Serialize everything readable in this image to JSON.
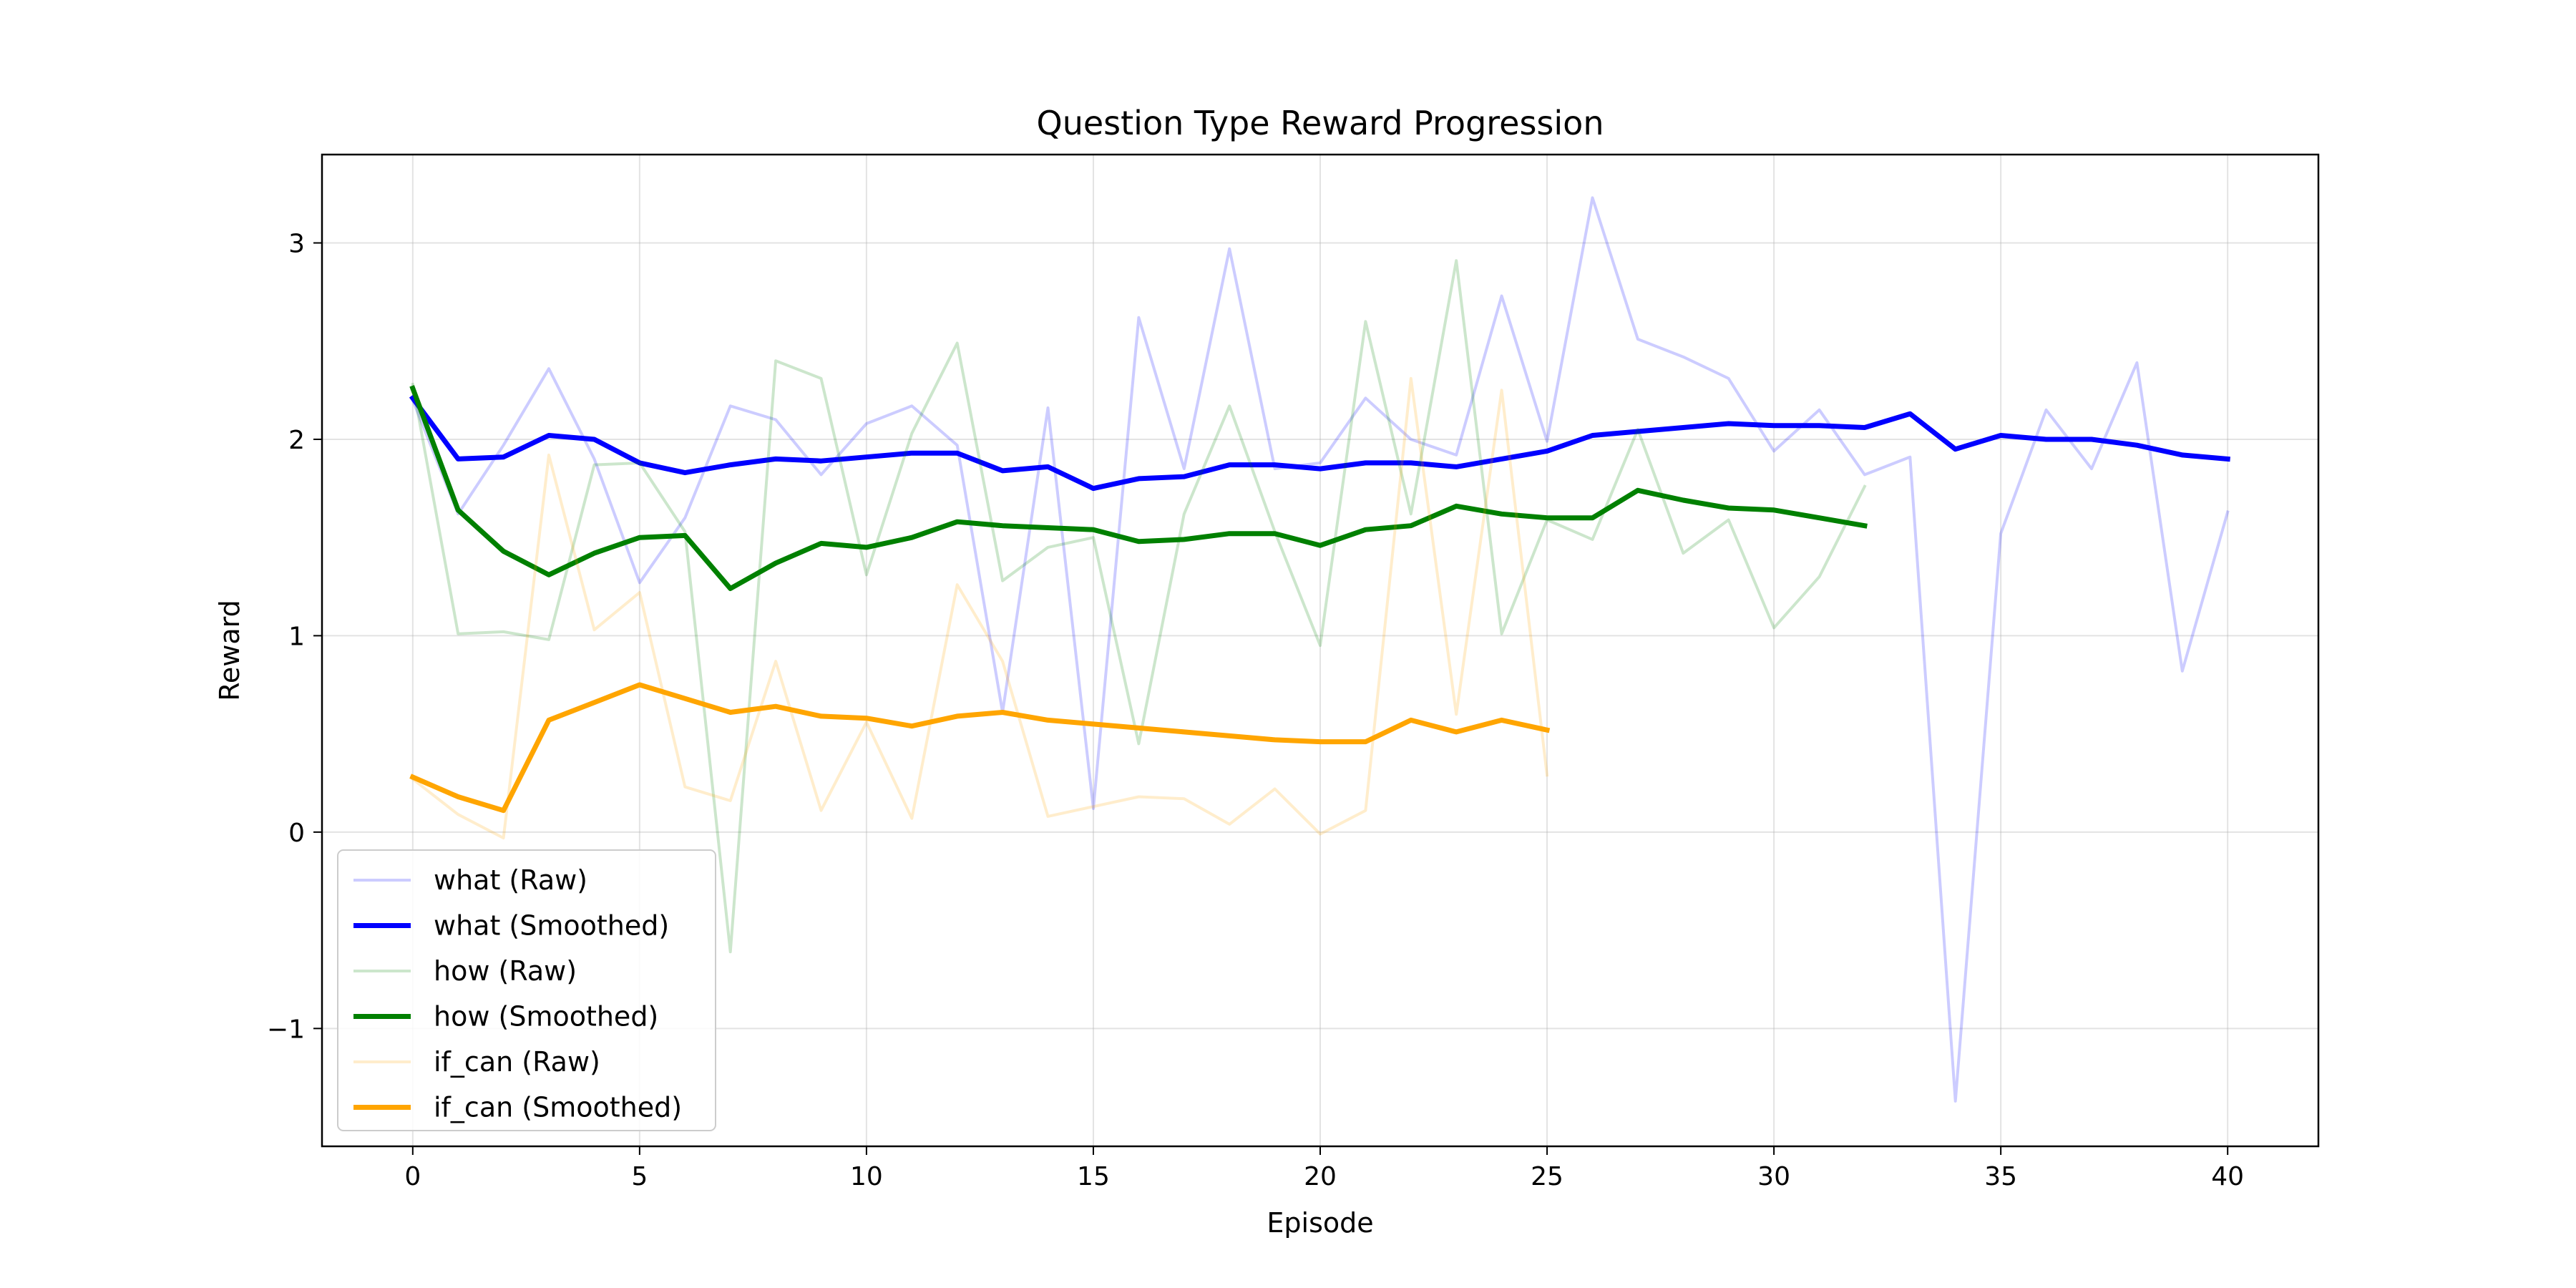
{
  "chart_data": {
    "type": "line",
    "title": "Question Type Reward Progression",
    "xlabel": "Episode",
    "ylabel": "Reward",
    "xlim": [
      -2,
      42
    ],
    "ylim": [
      -1.6,
      3.45
    ],
    "xticks": [
      0,
      5,
      10,
      15,
      20,
      25,
      30,
      35,
      40
    ],
    "yticks": [
      -1,
      0,
      1,
      2,
      3
    ],
    "grid": true,
    "legend_position": "lower-left",
    "series": [
      {
        "name": "what (Raw)",
        "color": "#0000ff",
        "alpha": 0.2,
        "width": 4,
        "x": [
          0,
          1,
          2,
          3,
          4,
          5,
          6,
          7,
          8,
          9,
          10,
          11,
          12,
          13,
          14,
          15,
          16,
          17,
          18,
          19,
          20,
          21,
          22,
          23,
          24,
          25,
          26,
          27,
          28,
          29,
          30,
          31,
          32,
          33,
          34,
          35,
          36,
          37,
          38,
          39,
          40
        ],
        "y": [
          2.2,
          1.62,
          1.97,
          2.36,
          1.9,
          1.27,
          1.6,
          2.17,
          2.1,
          1.82,
          2.08,
          2.17,
          1.97,
          0.61,
          2.16,
          0.12,
          2.62,
          1.85,
          2.97,
          1.85,
          1.88,
          2.21,
          2.0,
          1.92,
          2.73,
          1.99,
          3.23,
          2.51,
          2.42,
          2.31,
          1.94,
          2.15,
          1.82,
          1.91,
          -1.37,
          1.52,
          2.15,
          1.85,
          2.39,
          0.82,
          1.63
        ]
      },
      {
        "name": "what (Smoothed)",
        "color": "#0000ff",
        "alpha": 1,
        "width": 7,
        "x": [
          0,
          1,
          2,
          3,
          4,
          5,
          6,
          7,
          8,
          9,
          10,
          11,
          12,
          13,
          14,
          15,
          16,
          17,
          18,
          19,
          20,
          21,
          22,
          23,
          24,
          25,
          26,
          27,
          28,
          29,
          30,
          31,
          32,
          33,
          34,
          35,
          36,
          37,
          38,
          39,
          40
        ],
        "y": [
          2.21,
          1.9,
          1.91,
          2.02,
          2.0,
          1.88,
          1.83,
          1.87,
          1.9,
          1.89,
          1.91,
          1.93,
          1.93,
          1.84,
          1.86,
          1.75,
          1.8,
          1.81,
          1.87,
          1.87,
          1.85,
          1.88,
          1.88,
          1.86,
          1.9,
          1.94,
          2.02,
          2.04,
          2.06,
          2.08,
          2.07,
          2.07,
          2.06,
          2.13,
          1.95,
          2.02,
          2.0,
          2.0,
          1.97,
          1.92,
          1.9
        ]
      },
      {
        "name": "how (Raw)",
        "color": "#008000",
        "alpha": 0.2,
        "width": 4,
        "x": [
          0,
          1,
          2,
          3,
          4,
          5,
          6,
          7,
          8,
          9,
          10,
          11,
          12,
          13,
          14,
          15,
          16,
          17,
          18,
          19,
          20,
          21,
          22,
          23,
          24,
          25,
          26,
          27,
          28,
          29,
          30,
          31,
          32
        ],
        "y": [
          2.28,
          1.01,
          1.02,
          0.98,
          1.87,
          1.88,
          1.53,
          -0.61,
          2.4,
          2.31,
          1.31,
          2.03,
          2.49,
          1.28,
          1.45,
          1.5,
          0.45,
          1.62,
          2.17,
          1.53,
          0.95,
          2.6,
          1.62,
          2.91,
          1.01,
          1.59,
          1.49,
          2.05,
          1.42,
          1.59,
          1.04,
          1.3,
          1.76
        ]
      },
      {
        "name": "how (Smoothed)",
        "color": "#008000",
        "alpha": 1,
        "width": 7,
        "x": [
          0,
          1,
          2,
          3,
          4,
          5,
          6,
          7,
          8,
          9,
          10,
          11,
          12,
          13,
          14,
          15,
          16,
          17,
          18,
          19,
          20,
          21,
          22,
          23,
          24,
          25,
          26,
          27,
          28,
          29,
          30,
          31,
          32
        ],
        "y": [
          2.26,
          1.64,
          1.43,
          1.31,
          1.42,
          1.5,
          1.51,
          1.24,
          1.37,
          1.47,
          1.45,
          1.5,
          1.58,
          1.56,
          1.55,
          1.54,
          1.48,
          1.49,
          1.52,
          1.52,
          1.46,
          1.54,
          1.56,
          1.66,
          1.62,
          1.6,
          1.6,
          1.74,
          1.69,
          1.65,
          1.64,
          1.6,
          1.56
        ]
      },
      {
        "name": "if_can (Raw)",
        "color": "#ffa500",
        "alpha": 0.2,
        "width": 4,
        "x": [
          0,
          1,
          2,
          3,
          4,
          5,
          6,
          7,
          8,
          9,
          10,
          11,
          12,
          13,
          14,
          15,
          16,
          17,
          18,
          19,
          20,
          21,
          22,
          23,
          24,
          25
        ],
        "y": [
          0.27,
          0.09,
          -0.03,
          1.92,
          1.03,
          1.22,
          0.23,
          0.16,
          0.87,
          0.11,
          0.56,
          0.07,
          1.26,
          0.87,
          0.08,
          0.13,
          0.18,
          0.17,
          0.04,
          0.22,
          -0.01,
          0.11,
          2.31,
          0.6,
          2.25,
          0.29
        ]
      },
      {
        "name": "if_can (Smoothed)",
        "color": "#ffa500",
        "alpha": 1,
        "width": 7,
        "x": [
          0,
          1,
          2,
          3,
          4,
          5,
          6,
          7,
          8,
          9,
          10,
          11,
          12,
          13,
          14,
          15,
          16,
          17,
          18,
          19,
          20,
          21,
          22,
          23,
          24,
          25
        ],
        "y": [
          0.28,
          0.18,
          0.11,
          0.57,
          0.66,
          0.75,
          0.68,
          0.61,
          0.64,
          0.59,
          0.58,
          0.54,
          0.59,
          0.61,
          0.57,
          0.55,
          0.53,
          0.51,
          0.49,
          0.47,
          0.46,
          0.46,
          0.57,
          0.51,
          0.57,
          0.52
        ]
      }
    ]
  }
}
